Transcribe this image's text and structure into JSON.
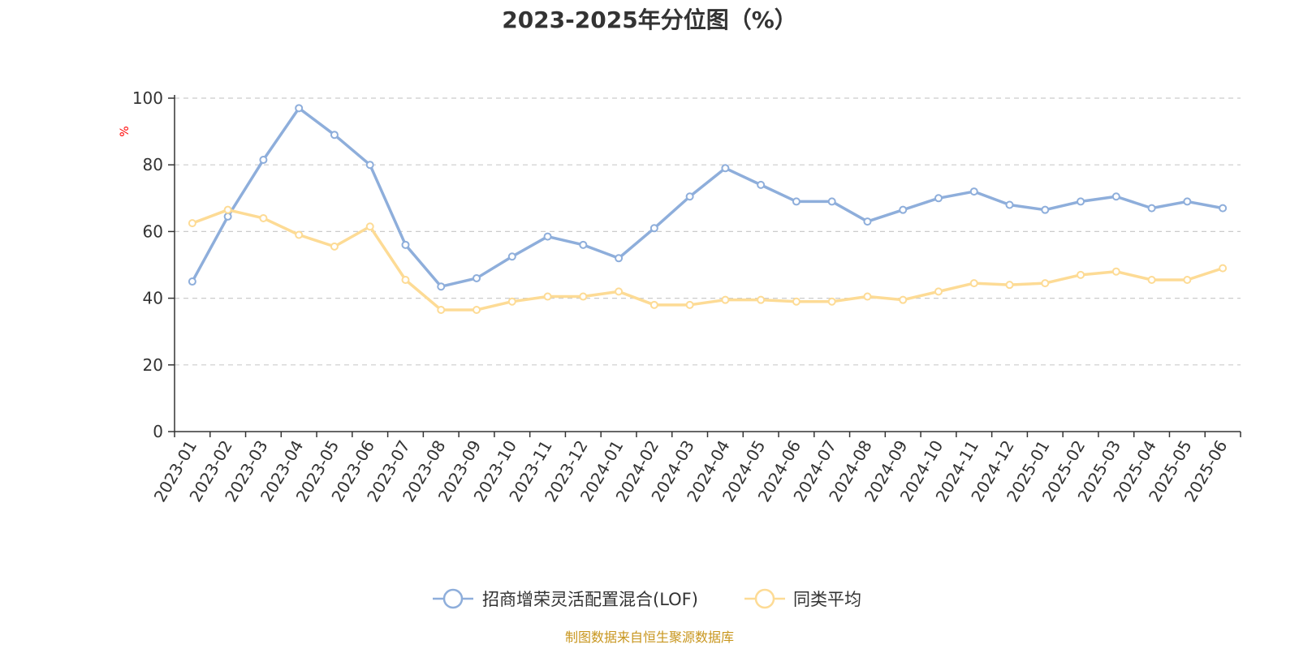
{
  "chart_data": {
    "type": "line",
    "title": "2023-2025年分位图（%）",
    "ylabel": "%",
    "ylim": [
      0,
      100
    ],
    "yticks": [
      "0",
      "20",
      "40",
      "60",
      "80",
      "100"
    ],
    "grid": true,
    "legend_position": "bottom",
    "categories": [
      "2023-01",
      "2023-02",
      "2023-03",
      "2023-04",
      "2023-05",
      "2023-06",
      "2023-07",
      "2023-08",
      "2023-09",
      "2023-10",
      "2023-11",
      "2023-12",
      "2024-01",
      "2024-02",
      "2024-03",
      "2024-04",
      "2024-05",
      "2024-06",
      "2024-07",
      "2024-08",
      "2024-09",
      "2024-10",
      "2024-11",
      "2024-12",
      "2025-01",
      "2025-02",
      "2025-03",
      "2025-04",
      "2025-05",
      "2025-06"
    ],
    "series": [
      {
        "name": "招商增荣灵活配置混合(LOF)",
        "color": "#8eaedb",
        "values": [
          45,
          64.5,
          81.5,
          97,
          89,
          80,
          56,
          43.5,
          46,
          52.5,
          58.5,
          56,
          52,
          61,
          70.5,
          79,
          74,
          69,
          69,
          63,
          66.5,
          70,
          72,
          68,
          66.5,
          69,
          70.5,
          67,
          69,
          67
        ]
      },
      {
        "name": "同类平均",
        "color": "#fddb95",
        "values": [
          62.5,
          66.5,
          64,
          59,
          55.5,
          61.5,
          45.5,
          36.5,
          36.5,
          39,
          40.5,
          40.5,
          42,
          38,
          38,
          39.5,
          39.5,
          39,
          39,
          40.5,
          39.5,
          42,
          44.5,
          44,
          44.5,
          47,
          48,
          45.5,
          45.5,
          49
        ]
      }
    ]
  },
  "source_note": "制图数据来自恒生聚源数据库"
}
